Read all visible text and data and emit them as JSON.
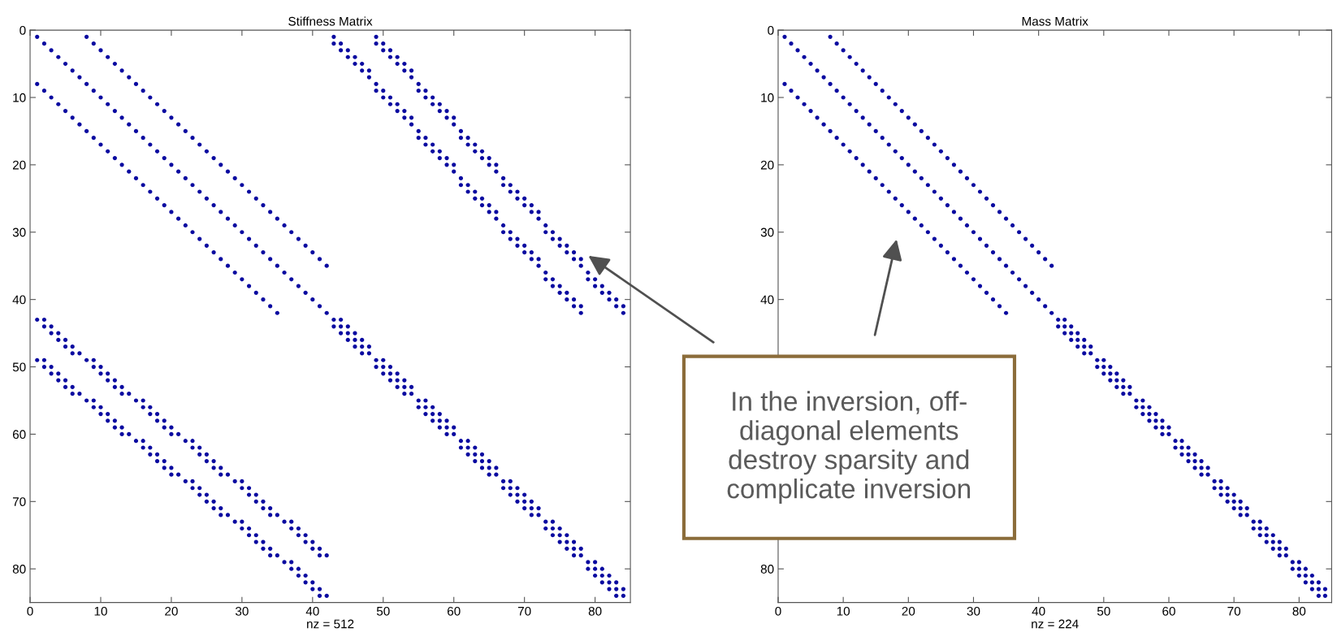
{
  "chart_data": [
    {
      "type": "scatter",
      "title": "Stiffness Matrix",
      "xlabel": "nz = 512",
      "marker": "circle",
      "xlim": [
        0,
        85
      ],
      "ylim": [
        85,
        0
      ],
      "xticks": [
        0,
        10,
        20,
        30,
        40,
        50,
        60,
        70,
        80
      ],
      "yticks": [
        0,
        10,
        20,
        30,
        40,
        50,
        60,
        70,
        80
      ],
      "annotations": [
        "In the inversion, off-\ndiagonal elements\ndestroy sparsity and\ncomplicate inversion"
      ],
      "series": [
        {
          "color": "#0a0aa0",
          "x": [
            1,
            2,
            3,
            4,
            5,
            6,
            7,
            8,
            9,
            10,
            11,
            12,
            13,
            14,
            15,
            16,
            17,
            18,
            19,
            20,
            21,
            22,
            23,
            24,
            25,
            26,
            27,
            28,
            29,
            30,
            31,
            32,
            33,
            34,
            35,
            36,
            37,
            38,
            39,
            40,
            41,
            42
          ],
          "values": [
            1,
            2,
            3,
            4,
            5,
            6,
            7,
            8,
            9,
            10,
            11,
            12,
            13,
            14,
            15,
            16,
            17,
            18,
            19,
            20,
            21,
            22,
            23,
            24,
            25,
            26,
            27,
            28,
            29,
            30,
            31,
            32,
            33,
            34,
            35,
            36,
            37,
            38,
            39,
            40,
            41,
            42
          ]
        },
        {
          "color": "#0a0aa0",
          "x": [
            8,
            9,
            10,
            11,
            12,
            13,
            14,
            15,
            16,
            17,
            18,
            19,
            20,
            21,
            22,
            23,
            24,
            25,
            26,
            27,
            28,
            29,
            30,
            31,
            32,
            33,
            34,
            35,
            36,
            37,
            38,
            39,
            40,
            41,
            42
          ],
          "values": [
            1,
            2,
            3,
            4,
            5,
            6,
            7,
            8,
            9,
            10,
            11,
            12,
            13,
            14,
            15,
            16,
            17,
            18,
            19,
            20,
            21,
            22,
            23,
            24,
            25,
            26,
            27,
            28,
            29,
            30,
            31,
            32,
            33,
            34,
            35
          ]
        },
        {
          "color": "#0a0aa0",
          "x": [
            1,
            2,
            3,
            4,
            5,
            6,
            7,
            8,
            9,
            10,
            11,
            12,
            13,
            14,
            15,
            16,
            17,
            18,
            19,
            20,
            21,
            22,
            23,
            24,
            25,
            26,
            27,
            28,
            29,
            30,
            31,
            32,
            33,
            34,
            35
          ],
          "values": [
            8,
            9,
            10,
            11,
            12,
            13,
            14,
            15,
            16,
            17,
            18,
            19,
            20,
            21,
            22,
            23,
            24,
            25,
            26,
            27,
            28,
            29,
            30,
            31,
            32,
            33,
            34,
            35,
            36,
            37,
            38,
            39,
            40,
            41,
            42
          ]
        },
        {
          "color": "#0a0aa0",
          "x": [
            43,
            44,
            45,
            46,
            47,
            48,
            49,
            50,
            51,
            52,
            53,
            54,
            55,
            56,
            57,
            58,
            59,
            60,
            61,
            62,
            63,
            64,
            65,
            66,
            67,
            68,
            69,
            70,
            71,
            72,
            73,
            74,
            75,
            76,
            77,
            78,
            79,
            80,
            81,
            82,
            83,
            84
          ],
          "values": [
            43,
            44,
            45,
            46,
            47,
            48,
            49,
            50,
            51,
            52,
            53,
            54,
            55,
            56,
            57,
            58,
            59,
            60,
            61,
            62,
            63,
            64,
            65,
            66,
            67,
            68,
            69,
            70,
            71,
            72,
            73,
            74,
            75,
            76,
            77,
            78,
            79,
            80,
            81,
            82,
            83,
            84
          ]
        },
        {
          "color": "#0a0aa0",
          "x": [
            44,
            45,
            46,
            47,
            48,
            50,
            51,
            52,
            53,
            54,
            56,
            57,
            58,
            59,
            60,
            62,
            63,
            64,
            65,
            66,
            68,
            69,
            70,
            71,
            72,
            74,
            75,
            76,
            77,
            78,
            80,
            81,
            82,
            83,
            84
          ],
          "values": [
            43,
            44,
            45,
            46,
            47,
            49,
            50,
            51,
            52,
            53,
            55,
            56,
            57,
            58,
            59,
            61,
            62,
            63,
            64,
            65,
            67,
            68,
            69,
            70,
            71,
            73,
            74,
            75,
            76,
            77,
            79,
            80,
            81,
            82,
            83
          ]
        },
        {
          "color": "#0a0aa0",
          "x": [
            43,
            44,
            45,
            46,
            47,
            49,
            50,
            51,
            52,
            53,
            55,
            56,
            57,
            58,
            59,
            61,
            62,
            63,
            64,
            65,
            67,
            68,
            69,
            70,
            71,
            73,
            74,
            75,
            76,
            77,
            79,
            80,
            81,
            82,
            83
          ],
          "values": [
            44,
            45,
            46,
            47,
            48,
            50,
            51,
            52,
            53,
            54,
            56,
            57,
            58,
            59,
            60,
            62,
            63,
            64,
            65,
            66,
            68,
            69,
            70,
            71,
            72,
            74,
            75,
            76,
            77,
            78,
            80,
            81,
            82,
            83,
            84
          ]
        },
        {
          "color": "#0a0aa0",
          "x": [
            43,
            44,
            45,
            46,
            47,
            48,
            49,
            50,
            51,
            52,
            53,
            54,
            55,
            56,
            57,
            58,
            59,
            60,
            61,
            62,
            63,
            64,
            65,
            66,
            67,
            68,
            69,
            70,
            71,
            72,
            73,
            74,
            75,
            76,
            77,
            78
          ],
          "values": [
            1,
            2,
            3,
            4,
            5,
            6,
            8,
            9,
            10,
            11,
            12,
            13,
            15,
            16,
            17,
            18,
            19,
            20,
            22,
            23,
            24,
            25,
            26,
            27,
            29,
            30,
            31,
            32,
            33,
            34,
            36,
            37,
            38,
            39,
            40,
            41
          ]
        },
        {
          "color": "#0a0aa0",
          "x": [
            43,
            44,
            45,
            46,
            47,
            48,
            49,
            50,
            51,
            52,
            53,
            54,
            55,
            56,
            57,
            58,
            59,
            60,
            61,
            62,
            63,
            64,
            65,
            66,
            67,
            68,
            69,
            70,
            71,
            72,
            73,
            74,
            75,
            76,
            77,
            78
          ],
          "values": [
            2,
            3,
            4,
            5,
            6,
            7,
            9,
            10,
            11,
            12,
            13,
            14,
            16,
            17,
            18,
            19,
            20,
            21,
            23,
            24,
            25,
            26,
            27,
            28,
            30,
            31,
            32,
            33,
            34,
            35,
            37,
            38,
            39,
            40,
            41,
            42
          ]
        },
        {
          "color": "#0a0aa0",
          "x": [
            49,
            50,
            51,
            52,
            53,
            54,
            55,
            56,
            57,
            58,
            59,
            60,
            61,
            62,
            63,
            64,
            65,
            66,
            67,
            68,
            69,
            70,
            71,
            72,
            73,
            74,
            75,
            76,
            77,
            78,
            79,
            80,
            81,
            82,
            83,
            84
          ],
          "values": [
            1,
            2,
            3,
            4,
            5,
            6,
            8,
            9,
            10,
            11,
            12,
            13,
            15,
            16,
            17,
            18,
            19,
            20,
            22,
            23,
            24,
            25,
            26,
            27,
            29,
            30,
            31,
            32,
            33,
            34,
            36,
            37,
            38,
            39,
            40,
            41
          ]
        },
        {
          "color": "#0a0aa0",
          "x": [
            49,
            50,
            51,
            52,
            53,
            54,
            55,
            56,
            57,
            58,
            59,
            60,
            61,
            62,
            63,
            64,
            65,
            66,
            67,
            68,
            69,
            70,
            71,
            72,
            73,
            74,
            75,
            76,
            77,
            78,
            79,
            80,
            81,
            82,
            83,
            84
          ],
          "values": [
            2,
            3,
            4,
            5,
            6,
            7,
            9,
            10,
            11,
            12,
            13,
            14,
            16,
            17,
            18,
            19,
            20,
            21,
            23,
            24,
            25,
            26,
            27,
            28,
            30,
            31,
            32,
            33,
            34,
            35,
            37,
            38,
            39,
            40,
            41,
            42
          ]
        },
        {
          "color": "#0a0aa0",
          "x": [
            1,
            2,
            3,
            4,
            5,
            6,
            8,
            9,
            10,
            11,
            12,
            13,
            15,
            16,
            17,
            18,
            19,
            20,
            22,
            23,
            24,
            25,
            26,
            27,
            29,
            30,
            31,
            32,
            33,
            34,
            36,
            37,
            38,
            39,
            40,
            41
          ],
          "values": [
            43,
            44,
            45,
            46,
            47,
            48,
            49,
            50,
            51,
            52,
            53,
            54,
            55,
            56,
            57,
            58,
            59,
            60,
            61,
            62,
            63,
            64,
            65,
            66,
            67,
            68,
            69,
            70,
            71,
            72,
            73,
            74,
            75,
            76,
            77,
            78
          ]
        },
        {
          "color": "#0a0aa0",
          "x": [
            2,
            3,
            4,
            5,
            6,
            7,
            9,
            10,
            11,
            12,
            13,
            14,
            16,
            17,
            18,
            19,
            20,
            21,
            23,
            24,
            25,
            26,
            27,
            28,
            30,
            31,
            32,
            33,
            34,
            35,
            37,
            38,
            39,
            40,
            41,
            42
          ],
          "values": [
            43,
            44,
            45,
            46,
            47,
            48,
            49,
            50,
            51,
            52,
            53,
            54,
            55,
            56,
            57,
            58,
            59,
            60,
            61,
            62,
            63,
            64,
            65,
            66,
            67,
            68,
            69,
            70,
            71,
            72,
            73,
            74,
            75,
            76,
            77,
            78
          ]
        },
        {
          "color": "#0a0aa0",
          "x": [
            1,
            2,
            3,
            4,
            5,
            6,
            8,
            9,
            10,
            11,
            12,
            13,
            15,
            16,
            17,
            18,
            19,
            20,
            22,
            23,
            24,
            25,
            26,
            27,
            29,
            30,
            31,
            32,
            33,
            34,
            36,
            37,
            38,
            39,
            40,
            41
          ],
          "values": [
            49,
            50,
            51,
            52,
            53,
            54,
            55,
            56,
            57,
            58,
            59,
            60,
            61,
            62,
            63,
            64,
            65,
            66,
            67,
            68,
            69,
            70,
            71,
            72,
            73,
            74,
            75,
            76,
            77,
            78,
            79,
            80,
            81,
            82,
            83,
            84
          ]
        },
        {
          "color": "#0a0aa0",
          "x": [
            2,
            3,
            4,
            5,
            6,
            7,
            9,
            10,
            11,
            12,
            13,
            14,
            16,
            17,
            18,
            19,
            20,
            21,
            23,
            24,
            25,
            26,
            27,
            28,
            30,
            31,
            32,
            33,
            34,
            35,
            37,
            38,
            39,
            40,
            41,
            42
          ],
          "values": [
            49,
            50,
            51,
            52,
            53,
            54,
            55,
            56,
            57,
            58,
            59,
            60,
            61,
            62,
            63,
            64,
            65,
            66,
            67,
            68,
            69,
            70,
            71,
            72,
            73,
            74,
            75,
            76,
            77,
            78,
            79,
            80,
            81,
            82,
            83,
            84
          ]
        }
      ]
    },
    {
      "type": "scatter",
      "title": "Mass Matrix",
      "xlabel": "nz = 224",
      "marker": "circle",
      "xlim": [
        0,
        85
      ],
      "ylim": [
        85,
        0
      ],
      "xticks": [
        0,
        10,
        20,
        30,
        40,
        50,
        60,
        70,
        80
      ],
      "yticks": [
        0,
        10,
        20,
        30,
        40,
        {
          "value": 50,
          "label": null
        },
        {
          "value": 60,
          "label": null
        },
        {
          "value": 70,
          "label": null
        },
        80
      ],
      "series": [
        {
          "color": "#0a0aa0",
          "x": [
            1,
            2,
            3,
            4,
            5,
            6,
            7,
            8,
            9,
            10,
            11,
            12,
            13,
            14,
            15,
            16,
            17,
            18,
            19,
            20,
            21,
            22,
            23,
            24,
            25,
            26,
            27,
            28,
            29,
            30,
            31,
            32,
            33,
            34,
            35,
            36,
            37,
            38,
            39,
            40,
            41,
            42
          ],
          "values": [
            1,
            2,
            3,
            4,
            5,
            6,
            7,
            8,
            9,
            10,
            11,
            12,
            13,
            14,
            15,
            16,
            17,
            18,
            19,
            20,
            21,
            22,
            23,
            24,
            25,
            26,
            27,
            28,
            29,
            30,
            31,
            32,
            33,
            34,
            35,
            36,
            37,
            38,
            39,
            40,
            41,
            42
          ]
        },
        {
          "color": "#0a0aa0",
          "x": [
            8,
            9,
            10,
            11,
            12,
            13,
            14,
            15,
            16,
            17,
            18,
            19,
            20,
            21,
            22,
            23,
            24,
            25,
            26,
            27,
            28,
            29,
            30,
            31,
            32,
            33,
            34,
            35,
            36,
            37,
            38,
            39,
            40,
            41,
            42
          ],
          "values": [
            1,
            2,
            3,
            4,
            5,
            6,
            7,
            8,
            9,
            10,
            11,
            12,
            13,
            14,
            15,
            16,
            17,
            18,
            19,
            20,
            21,
            22,
            23,
            24,
            25,
            26,
            27,
            28,
            29,
            30,
            31,
            32,
            33,
            34,
            35
          ]
        },
        {
          "color": "#0a0aa0",
          "x": [
            1,
            2,
            3,
            4,
            5,
            6,
            7,
            8,
            9,
            10,
            11,
            12,
            13,
            14,
            15,
            16,
            17,
            18,
            19,
            20,
            21,
            22,
            23,
            24,
            25,
            26,
            27,
            28,
            29,
            30,
            31,
            32,
            33,
            34,
            35
          ],
          "values": [
            8,
            9,
            10,
            11,
            12,
            13,
            14,
            15,
            16,
            17,
            18,
            19,
            20,
            21,
            22,
            23,
            24,
            25,
            26,
            27,
            28,
            29,
            30,
            31,
            32,
            33,
            34,
            35,
            36,
            37,
            38,
            39,
            40,
            41,
            42
          ]
        },
        {
          "color": "#0a0aa0",
          "x": [
            43,
            44,
            45,
            46,
            47,
            48,
            49,
            50,
            51,
            52,
            53,
            54,
            55,
            56,
            57,
            58,
            59,
            60,
            61,
            62,
            63,
            64,
            65,
            66,
            67,
            68,
            69,
            70,
            71,
            72,
            73,
            74,
            75,
            76,
            77,
            78,
            79,
            80,
            81,
            82,
            83,
            84
          ],
          "values": [
            43,
            44,
            45,
            46,
            47,
            48,
            49,
            50,
            51,
            52,
            53,
            54,
            55,
            56,
            57,
            58,
            59,
            60,
            61,
            62,
            63,
            64,
            65,
            66,
            67,
            68,
            69,
            70,
            71,
            72,
            73,
            74,
            75,
            76,
            77,
            78,
            79,
            80,
            81,
            82,
            83,
            84
          ]
        },
        {
          "color": "#0a0aa0",
          "x": [
            44,
            45,
            46,
            47,
            48,
            50,
            51,
            52,
            53,
            54,
            56,
            57,
            58,
            59,
            60,
            62,
            63,
            64,
            65,
            66,
            68,
            69,
            70,
            71,
            72,
            74,
            75,
            76,
            77,
            78,
            80,
            81,
            82,
            83,
            84
          ],
          "values": [
            43,
            44,
            45,
            46,
            47,
            49,
            50,
            51,
            52,
            53,
            55,
            56,
            57,
            58,
            59,
            61,
            62,
            63,
            64,
            65,
            67,
            68,
            69,
            70,
            71,
            73,
            74,
            75,
            76,
            77,
            79,
            80,
            81,
            82,
            83
          ]
        },
        {
          "color": "#0a0aa0",
          "x": [
            43,
            44,
            45,
            46,
            47,
            49,
            50,
            51,
            52,
            53,
            55,
            56,
            57,
            58,
            59,
            61,
            62,
            63,
            64,
            65,
            67,
            68,
            69,
            70,
            71,
            73,
            74,
            75,
            76,
            77,
            79,
            80,
            81,
            82,
            83
          ],
          "values": [
            44,
            45,
            46,
            47,
            48,
            50,
            51,
            52,
            53,
            54,
            56,
            57,
            58,
            59,
            60,
            62,
            63,
            64,
            65,
            66,
            68,
            69,
            70,
            71,
            72,
            74,
            75,
            76,
            77,
            78,
            80,
            81,
            82,
            83,
            84
          ]
        }
      ]
    }
  ]
}
